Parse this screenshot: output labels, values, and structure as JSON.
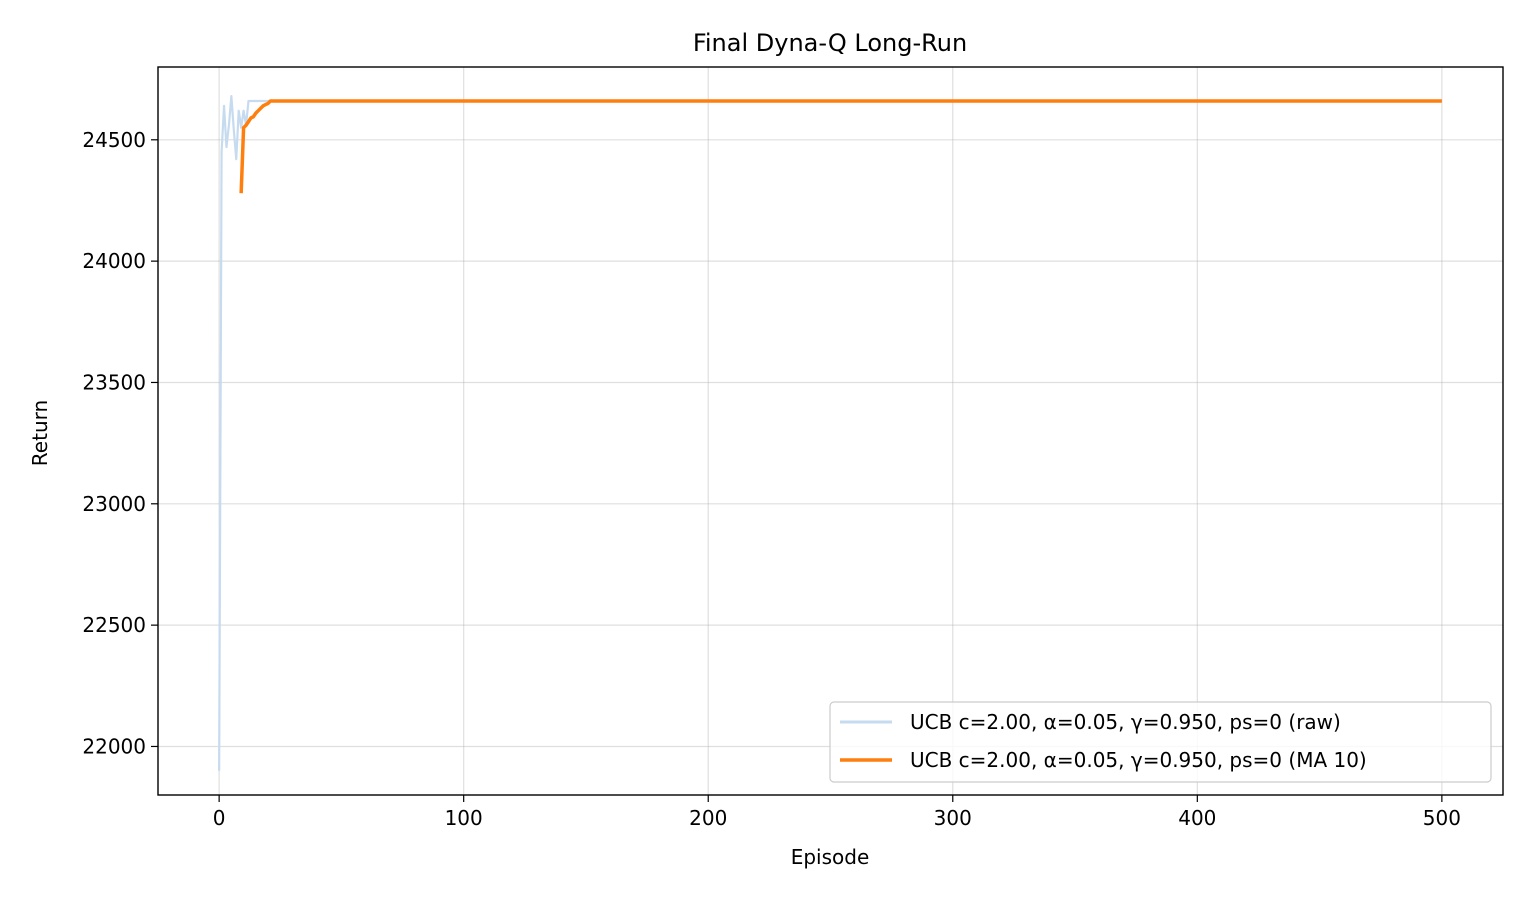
{
  "chart_data": {
    "type": "line",
    "title": "Final Dyna-Q Long-Run",
    "xlabel": "Episode",
    "ylabel": "Return",
    "xlim": [
      -25,
      525
    ],
    "ylim": [
      21800,
      24800
    ],
    "xticks": [
      0,
      100,
      200,
      300,
      400,
      500
    ],
    "yticks": [
      22000,
      22500,
      23000,
      23500,
      24000,
      24500
    ],
    "grid": true,
    "legend_position": "lower-right",
    "series": [
      {
        "name": "UCB c=2.00, α=0.05, γ=0.950, ps=0 (raw)",
        "color": "#c6dbef",
        "x": [
          0,
          1,
          2,
          3,
          4,
          5,
          6,
          7,
          8,
          9,
          10,
          11,
          12,
          13,
          500
        ],
        "y": [
          21900,
          24450,
          24640,
          24470,
          24560,
          24680,
          24540,
          24420,
          24620,
          24550,
          24620,
          24560,
          24660,
          24660,
          24660
        ]
      },
      {
        "name": "UCB c=2.00, α=0.05, γ=0.950, ps=0 (MA 10)",
        "color": "#ff7f0e",
        "x": [
          9,
          10,
          11,
          12,
          13,
          14,
          15,
          16,
          17,
          18,
          19,
          20,
          21,
          500
        ],
        "y": [
          24280,
          24550,
          24560,
          24575,
          24590,
          24595,
          24610,
          24620,
          24630,
          24640,
          24645,
          24650,
          24660,
          24660
        ]
      }
    ]
  }
}
